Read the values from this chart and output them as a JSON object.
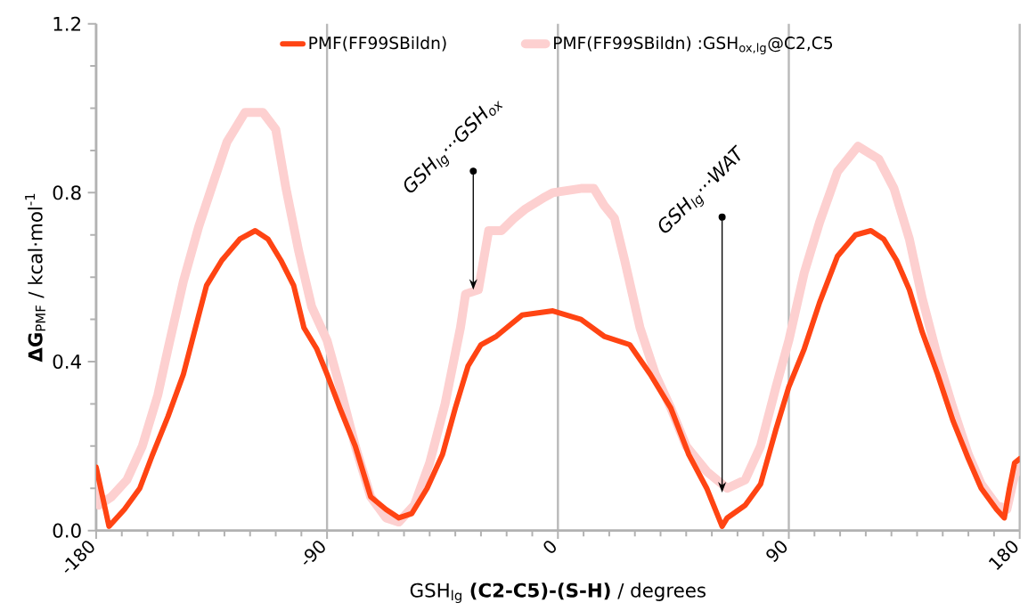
{
  "chart_data": {
    "type": "line",
    "xlabel": "GSH$_{lg}$ **(C2-C5)-(S-H)** / degrees",
    "ylabel": "**ΔG**$_{PMF}$ / kcal·mol$^{-1}$",
    "xlim": [
      -180,
      180
    ],
    "xticks": [
      -180,
      -90,
      0,
      90,
      180
    ],
    "ylim": [
      0,
      1.2
    ],
    "yticks": [
      {
        "value": 0,
        "label": "0.0"
      },
      0.4,
      0.8,
      1.2
    ],
    "grid": "x",
    "legend": "top",
    "marker": "none",
    "line_style": "solid",
    "series": [
      {
        "name": "PMF(FF99SBildn) :GSH$_{ox,lg}$@C2,C5",
        "color": "#fdd0d0",
        "x": [
          -180,
          -179,
          -174,
          -168,
          -162,
          -156,
          -152,
          -146,
          -140,
          -134,
          -129,
          -122,
          -115,
          -110,
          -106,
          -101,
          -96,
          -90,
          -85,
          -79,
          -73,
          -67,
          -62,
          -56,
          -50,
          -44,
          -38,
          -36,
          -31,
          -27,
          -22,
          -17,
          -13,
          -5,
          -2,
          9,
          14,
          18,
          22,
          26,
          32,
          38,
          44,
          50,
          58,
          66,
          73,
          79,
          85,
          90,
          96,
          102,
          109,
          117,
          125,
          131,
          137,
          142,
          148,
          154,
          160,
          165,
          171,
          175,
          178,
          180
        ],
        "values": [
          0.12,
          0.06,
          0.08,
          0.12,
          0.2,
          0.32,
          0.43,
          0.59,
          0.72,
          0.83,
          0.92,
          0.99,
          0.99,
          0.95,
          0.81,
          0.66,
          0.53,
          0.45,
          0.34,
          0.2,
          0.08,
          0.03,
          0.02,
          0.06,
          0.16,
          0.3,
          0.48,
          0.56,
          0.57,
          0.71,
          0.71,
          0.74,
          0.76,
          0.79,
          0.8,
          0.81,
          0.81,
          0.77,
          0.74,
          0.64,
          0.48,
          0.37,
          0.29,
          0.2,
          0.14,
          0.1,
          0.12,
          0.2,
          0.34,
          0.45,
          0.61,
          0.73,
          0.85,
          0.91,
          0.88,
          0.81,
          0.69,
          0.55,
          0.41,
          0.29,
          0.18,
          0.11,
          0.06,
          0.05,
          0.13,
          0.15
        ]
      },
      {
        "name": "PMF(FF99SBildn)",
        "color": "#ff4413",
        "x": [
          -180,
          -175,
          -169,
          -163,
          -158,
          -152,
          -146,
          -140,
          -137,
          -131,
          -124,
          -118,
          -113,
          -108,
          -103,
          -99,
          -94,
          -90,
          -85,
          -79,
          -73,
          -67,
          -62,
          -57,
          -51,
          -45,
          -40,
          -35,
          -30,
          -24,
          -20,
          -14,
          -2,
          9,
          18,
          28,
          36,
          44,
          51,
          58,
          64,
          66,
          73,
          79,
          85,
          90,
          96,
          102,
          109,
          116,
          122,
          127,
          132,
          137,
          142,
          148,
          154,
          160,
          165,
          171,
          174,
          176,
          178,
          180
        ],
        "values": [
          0.15,
          0.01,
          0.05,
          0.1,
          0.18,
          0.27,
          0.37,
          0.51,
          0.58,
          0.64,
          0.69,
          0.71,
          0.69,
          0.64,
          0.58,
          0.48,
          0.43,
          0.37,
          0.29,
          0.2,
          0.08,
          0.05,
          0.03,
          0.04,
          0.1,
          0.18,
          0.29,
          0.39,
          0.44,
          0.46,
          0.48,
          0.51,
          0.52,
          0.5,
          0.46,
          0.44,
          0.37,
          0.29,
          0.18,
          0.1,
          0.01,
          0.03,
          0.06,
          0.11,
          0.24,
          0.34,
          0.43,
          0.54,
          0.65,
          0.7,
          0.71,
          0.69,
          0.64,
          0.57,
          0.47,
          0.37,
          0.26,
          0.17,
          0.1,
          0.05,
          0.03,
          0.1,
          0.16,
          0.17
        ]
      }
    ],
    "annotations": [
      {
        "text": "GSH$_{lg}$···GSH$_{ox}$",
        "x": -33,
        "y": 0.57
      },
      {
        "text": "GSH$_{lg}$···WAT",
        "x": 64,
        "y": 0.09
      }
    ]
  }
}
